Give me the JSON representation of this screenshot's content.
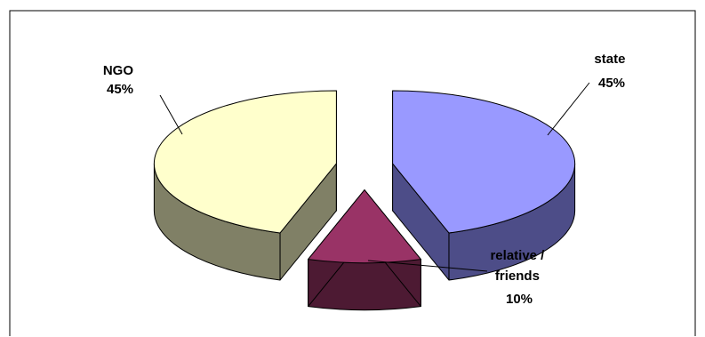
{
  "chart_data": {
    "type": "pie",
    "style": "3d-exploded",
    "title": "",
    "slices": [
      {
        "label_lines": [
          "state"
        ],
        "percent": "45%",
        "value": 45,
        "top_color": "#9999ff",
        "side_color": "#4d4d88"
      },
      {
        "label_lines": [
          "relative /",
          "friends"
        ],
        "percent": "10%",
        "value": 10,
        "top_color": "#993366",
        "side_color": "#4d1a33"
      },
      {
        "label_lines": [
          "NGO"
        ],
        "percent": "45%",
        "value": 45,
        "top_color": "#ffffcc",
        "side_color": "#808066"
      }
    ],
    "legend": "none"
  }
}
